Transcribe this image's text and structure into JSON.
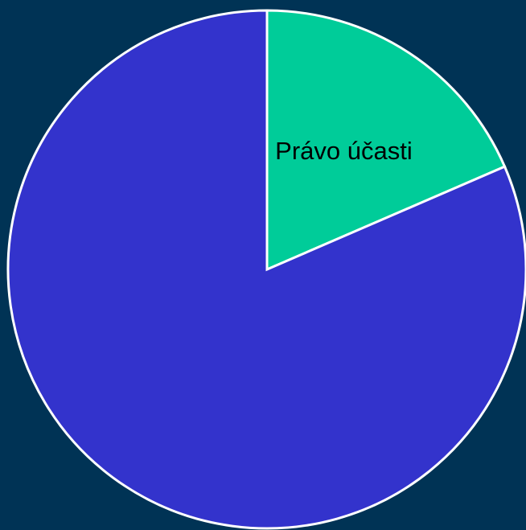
{
  "background_color": "#003355",
  "chart_data": {
    "type": "pie",
    "title": "",
    "start_angle_deg": 0,
    "direction": "clockwise",
    "slices": [
      {
        "label": "Právo účasti",
        "value": 18.5,
        "color": "#00CC99",
        "show_label": true
      },
      {
        "label": "",
        "value": 81.5,
        "color": "#3333CC",
        "show_label": false
      }
    ]
  }
}
